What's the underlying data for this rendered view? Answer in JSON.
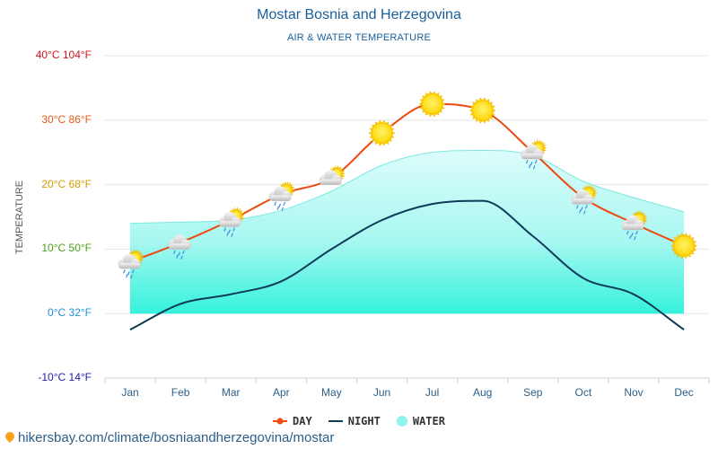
{
  "chart_data": {
    "type": "line",
    "title": "Mostar Bosnia and Herzegovina",
    "subtitle": "AIR & WATER TEMPERATURE",
    "ylabel": "TEMPERATURE",
    "xlabel": "",
    "ylim": [
      -10,
      40
    ],
    "yticks": [
      {
        "value": 40,
        "label": "40°C 104°F",
        "color": "#d4141b"
      },
      {
        "value": 30,
        "label": "30°C 86°F",
        "color": "#e85a12"
      },
      {
        "value": 20,
        "label": "20°C 68°F",
        "color": "#d89a00"
      },
      {
        "value": 10,
        "label": "10°C 50°F",
        "color": "#46a317"
      },
      {
        "value": 0,
        "label": "0°C 32°F",
        "color": "#1f8fd6"
      },
      {
        "value": -10,
        "label": "-10°C 14°F",
        "color": "#2222aa"
      }
    ],
    "categories": [
      "Jan",
      "Feb",
      "Mar",
      "Apr",
      "May",
      "Jun",
      "Jul",
      "Aug",
      "Sep",
      "Oct",
      "Nov",
      "Dec"
    ],
    "series": [
      {
        "name": "DAY",
        "kind": "line",
        "color": "#ee4a10",
        "values": [
          8,
          11,
          14.5,
          18.5,
          21,
          28,
          32.5,
          31.5,
          25,
          18,
          14,
          10.5
        ]
      },
      {
        "name": "NIGHT",
        "kind": "line",
        "color": "#0d3b5a",
        "values": [
          -2.5,
          1.5,
          3,
          5,
          10,
          14.5,
          17,
          17.5,
          12,
          5.5,
          3,
          -2.5
        ]
      },
      {
        "name": "WATER",
        "kind": "area",
        "color": "#8ff3ee",
        "values": [
          14,
          14.2,
          14.5,
          16,
          19,
          23,
          25,
          25.3,
          24.5,
          20.5,
          18,
          15.8
        ]
      }
    ],
    "weather_icons": [
      "cloud-rain-sun",
      "cloud-rain",
      "cloud-rain-sun",
      "cloud-rain-sun",
      "cloud-sun",
      "sun",
      "sun",
      "sun",
      "cloud-rain-sun",
      "cloud-rain-sun",
      "cloud-rain-sun",
      "sun"
    ],
    "legend_position": "bottom",
    "grid": true
  },
  "source": {
    "text": "hikersbay.com/climate/bosniaandherzegovina/mostar"
  }
}
